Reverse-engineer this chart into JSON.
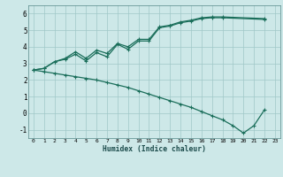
{
  "xlabel": "Humidex (Indice chaleur)",
  "bg_color": "#cde8e8",
  "grid_color": "#a0c8c8",
  "line_color": "#1a6e5a",
  "xlim": [
    -0.5,
    23.5
  ],
  "ylim": [
    -1.5,
    6.5
  ],
  "xticks": [
    0,
    1,
    2,
    3,
    4,
    5,
    6,
    7,
    8,
    9,
    10,
    11,
    12,
    13,
    14,
    15,
    16,
    17,
    18,
    19,
    20,
    21,
    22,
    23
  ],
  "yticks": [
    -1,
    0,
    1,
    2,
    3,
    4,
    5,
    6
  ],
  "line1_x": [
    0,
    1,
    2,
    3,
    4,
    5,
    6,
    7,
    8,
    9,
    10,
    11,
    12,
    13,
    14,
    15,
    16,
    17,
    18,
    22
  ],
  "line1_y": [
    2.6,
    2.7,
    3.1,
    3.3,
    3.7,
    3.3,
    3.8,
    3.6,
    4.2,
    4.0,
    4.45,
    4.45,
    5.2,
    5.3,
    5.5,
    5.6,
    5.75,
    5.8,
    5.8,
    5.7
  ],
  "line2_x": [
    0,
    1,
    2,
    3,
    4,
    5,
    6,
    7,
    8,
    9,
    10,
    11,
    12,
    13,
    14,
    15,
    16,
    17,
    18,
    22
  ],
  "line2_y": [
    2.6,
    2.7,
    3.1,
    3.25,
    3.55,
    3.15,
    3.65,
    3.4,
    4.15,
    3.85,
    4.35,
    4.35,
    5.15,
    5.25,
    5.45,
    5.55,
    5.7,
    5.75,
    5.75,
    5.65
  ],
  "line3_x": [
    0,
    1,
    2,
    3,
    4,
    5,
    6,
    7,
    8,
    9,
    10,
    11,
    12,
    13,
    14,
    15,
    16,
    17,
    18,
    19,
    20,
    21,
    22
  ],
  "line3_y": [
    2.6,
    2.5,
    2.4,
    2.3,
    2.2,
    2.1,
    2.0,
    1.85,
    1.7,
    1.55,
    1.35,
    1.15,
    0.95,
    0.75,
    0.55,
    0.35,
    0.1,
    -0.15,
    -0.4,
    -0.75,
    -1.2,
    -0.75,
    0.2
  ]
}
